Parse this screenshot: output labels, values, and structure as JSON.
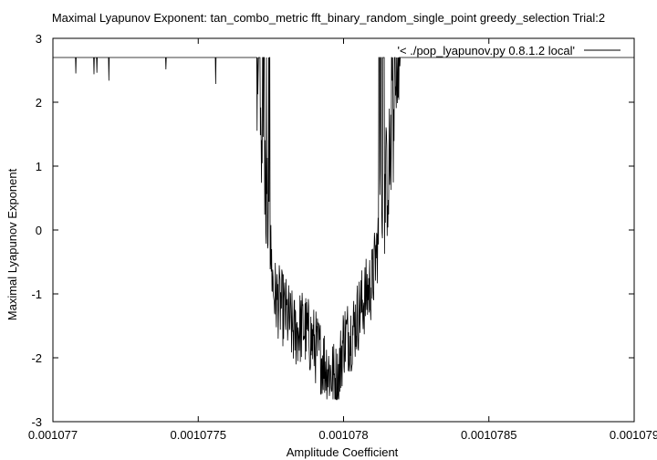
{
  "chart_data": {
    "type": "line",
    "title": "Maximal Lyapunov Exponent: tan_combo_metric fft_binary_random_single_point greedy_selection Trial:2",
    "xlabel": "Amplitude Coefficient",
    "ylabel": "Maximal Lyapunov Exponent",
    "xlim": [
      0.001077,
      0.001079
    ],
    "ylim": [
      -3,
      3
    ],
    "x_ticks": [
      0.001077,
      0.0010775,
      0.001078,
      0.0010785,
      0.001079
    ],
    "x_tick_labels": [
      "0.001077",
      "0.0010775",
      "0.001078",
      "0.0010785",
      "0.001079"
    ],
    "y_ticks": [
      -3,
      -2,
      -1,
      0,
      1,
      2,
      3
    ],
    "y_tick_labels": [
      "-3",
      "-2",
      "-1",
      "0",
      "1",
      "2",
      "3"
    ],
    "grid": false,
    "legend_position": "top-right",
    "series": [
      {
        "name": "'< ./pop_lyapunov.py 0.8.1.2 local'",
        "color": "#000000",
        "description_points": {
          "x": [
            0.001077,
            0.0010771,
            0.0010772,
            0.0010773,
            0.0010774,
            0.0010775,
            0.0010776,
            0.00107765,
            0.0010777,
            0.00107773,
            0.00107776,
            0.0010778,
            0.00107783,
            0.00107786,
            0.0010779,
            0.00107795,
            0.00107798,
            0.001078,
            0.00107803,
            0.00107806,
            0.0010781,
            0.00107813,
            0.00107816,
            0.0010782,
            0.00107823,
            0.00107826,
            0.0010783,
            0.0010785,
            0.001079
          ],
          "y": [
            2.7,
            2.7,
            2.7,
            2.7,
            2.7,
            2.7,
            2.7,
            2.7,
            2.7,
            0.8,
            -1.0,
            -1.3,
            -1.6,
            -1.5,
            -1.8,
            -2.2,
            -2.4,
            -1.7,
            -1.6,
            -1.2,
            -0.8,
            0.2,
            1.1,
            2.7,
            2.7,
            2.7,
            2.7,
            2.7,
            2.7
          ]
        }
      }
    ]
  }
}
